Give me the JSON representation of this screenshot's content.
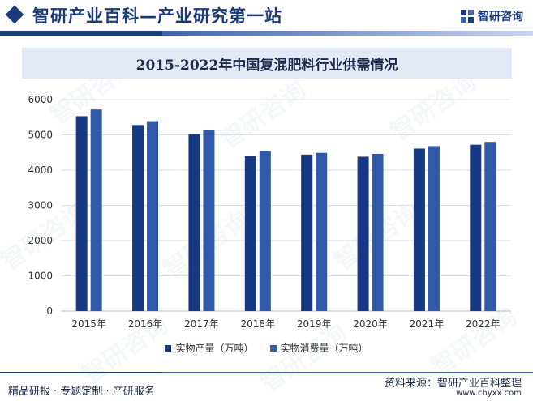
{
  "header": {
    "title": "智研产业百科—产业研究第一站",
    "brand_name": "智研咨询"
  },
  "watermark_text": "智研咨询",
  "footer": {
    "left_text": "精品研报 · 专题定制 · 产研服务",
    "source_text": "资料来源：智研产业百科整理",
    "url_text": "www.chyxx.com"
  },
  "colors": {
    "brand_dark": "#1b3a7a",
    "series_production": "#173883",
    "series_consumption": "#3059a8",
    "title_band": "#e4eaf5",
    "grid": "#e0e0e0"
  },
  "chart_data": {
    "type": "bar",
    "title": "2015-2022年中国复混肥料行业供需情况",
    "categories": [
      "2015年",
      "2016年",
      "2017年",
      "2018年",
      "2019年",
      "2020年",
      "2021年",
      "2022年"
    ],
    "series": [
      {
        "name": "实物产量（万吨）",
        "values": [
          5530,
          5280,
          5020,
          4400,
          4440,
          4380,
          4610,
          4720
        ]
      },
      {
        "name": "实物消费量（万吨）",
        "values": [
          5720,
          5390,
          5140,
          4540,
          4490,
          4460,
          4680,
          4800
        ]
      }
    ],
    "ylim": [
      0,
      6000
    ],
    "yticks": [
      0,
      1000,
      2000,
      3000,
      4000,
      5000,
      6000
    ],
    "grid": true,
    "legend_position": "bottom"
  }
}
